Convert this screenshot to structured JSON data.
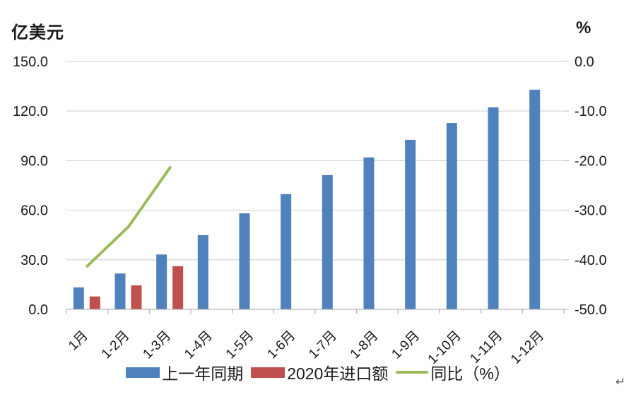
{
  "page": {
    "return_mark": "↵"
  },
  "chart_data": {
    "type": "bar",
    "subtype": "clustered-bar-plus-line-dual-axis",
    "title": "",
    "left_axis": {
      "title": "亿美元",
      "tick_labels": [
        "150.0",
        "120.0",
        "90.0",
        "60.0",
        "30.0",
        "0.0"
      ],
      "tick_values": [
        150,
        120,
        90,
        60,
        30,
        0
      ],
      "min": 0,
      "max": 150
    },
    "right_axis": {
      "title": "%",
      "tick_labels": [
        "0.0",
        "-10.0",
        "-20.0",
        "-30.0",
        "-40.0",
        "-50.0"
      ],
      "tick_values": [
        0,
        -10,
        -20,
        -30,
        -40,
        -50
      ],
      "min": -50,
      "max": 0
    },
    "categories": [
      "1月",
      "1-2月",
      "1-3月",
      "1-4月",
      "1-5月",
      "1-6月",
      "1-7月",
      "1-8月",
      "1-9月",
      "1-10月",
      "1-11月",
      "1-12月"
    ],
    "series": [
      {
        "name": "上一年同期",
        "type": "bar",
        "axis": "left",
        "color": "#4f81bd",
        "values": [
          13.3,
          21.7,
          33.2,
          44.9,
          58.1,
          69.7,
          81.2,
          91.9,
          102.6,
          112.8,
          122.2,
          132.9
        ]
      },
      {
        "name": "2020年进口额",
        "type": "bar",
        "axis": "left",
        "color": "#c0504d",
        "values": [
          7.8,
          14.5,
          26.1,
          null,
          null,
          null,
          null,
          null,
          null,
          null,
          null,
          null
        ]
      },
      {
        "name": "同比（%）",
        "type": "line",
        "axis": "right",
        "color": "#9bbb59",
        "values": [
          -41.3,
          -33.3,
          -21.4,
          null,
          null,
          null,
          null,
          null,
          null,
          null,
          null,
          null
        ]
      }
    ],
    "legend_position": "bottom",
    "grid": true,
    "colors": {
      "gridline": "#d9d9d9",
      "axis_line": "#b3b3b3",
      "right_tick": "#c8c8c8",
      "text": "#1a1a1a"
    }
  }
}
